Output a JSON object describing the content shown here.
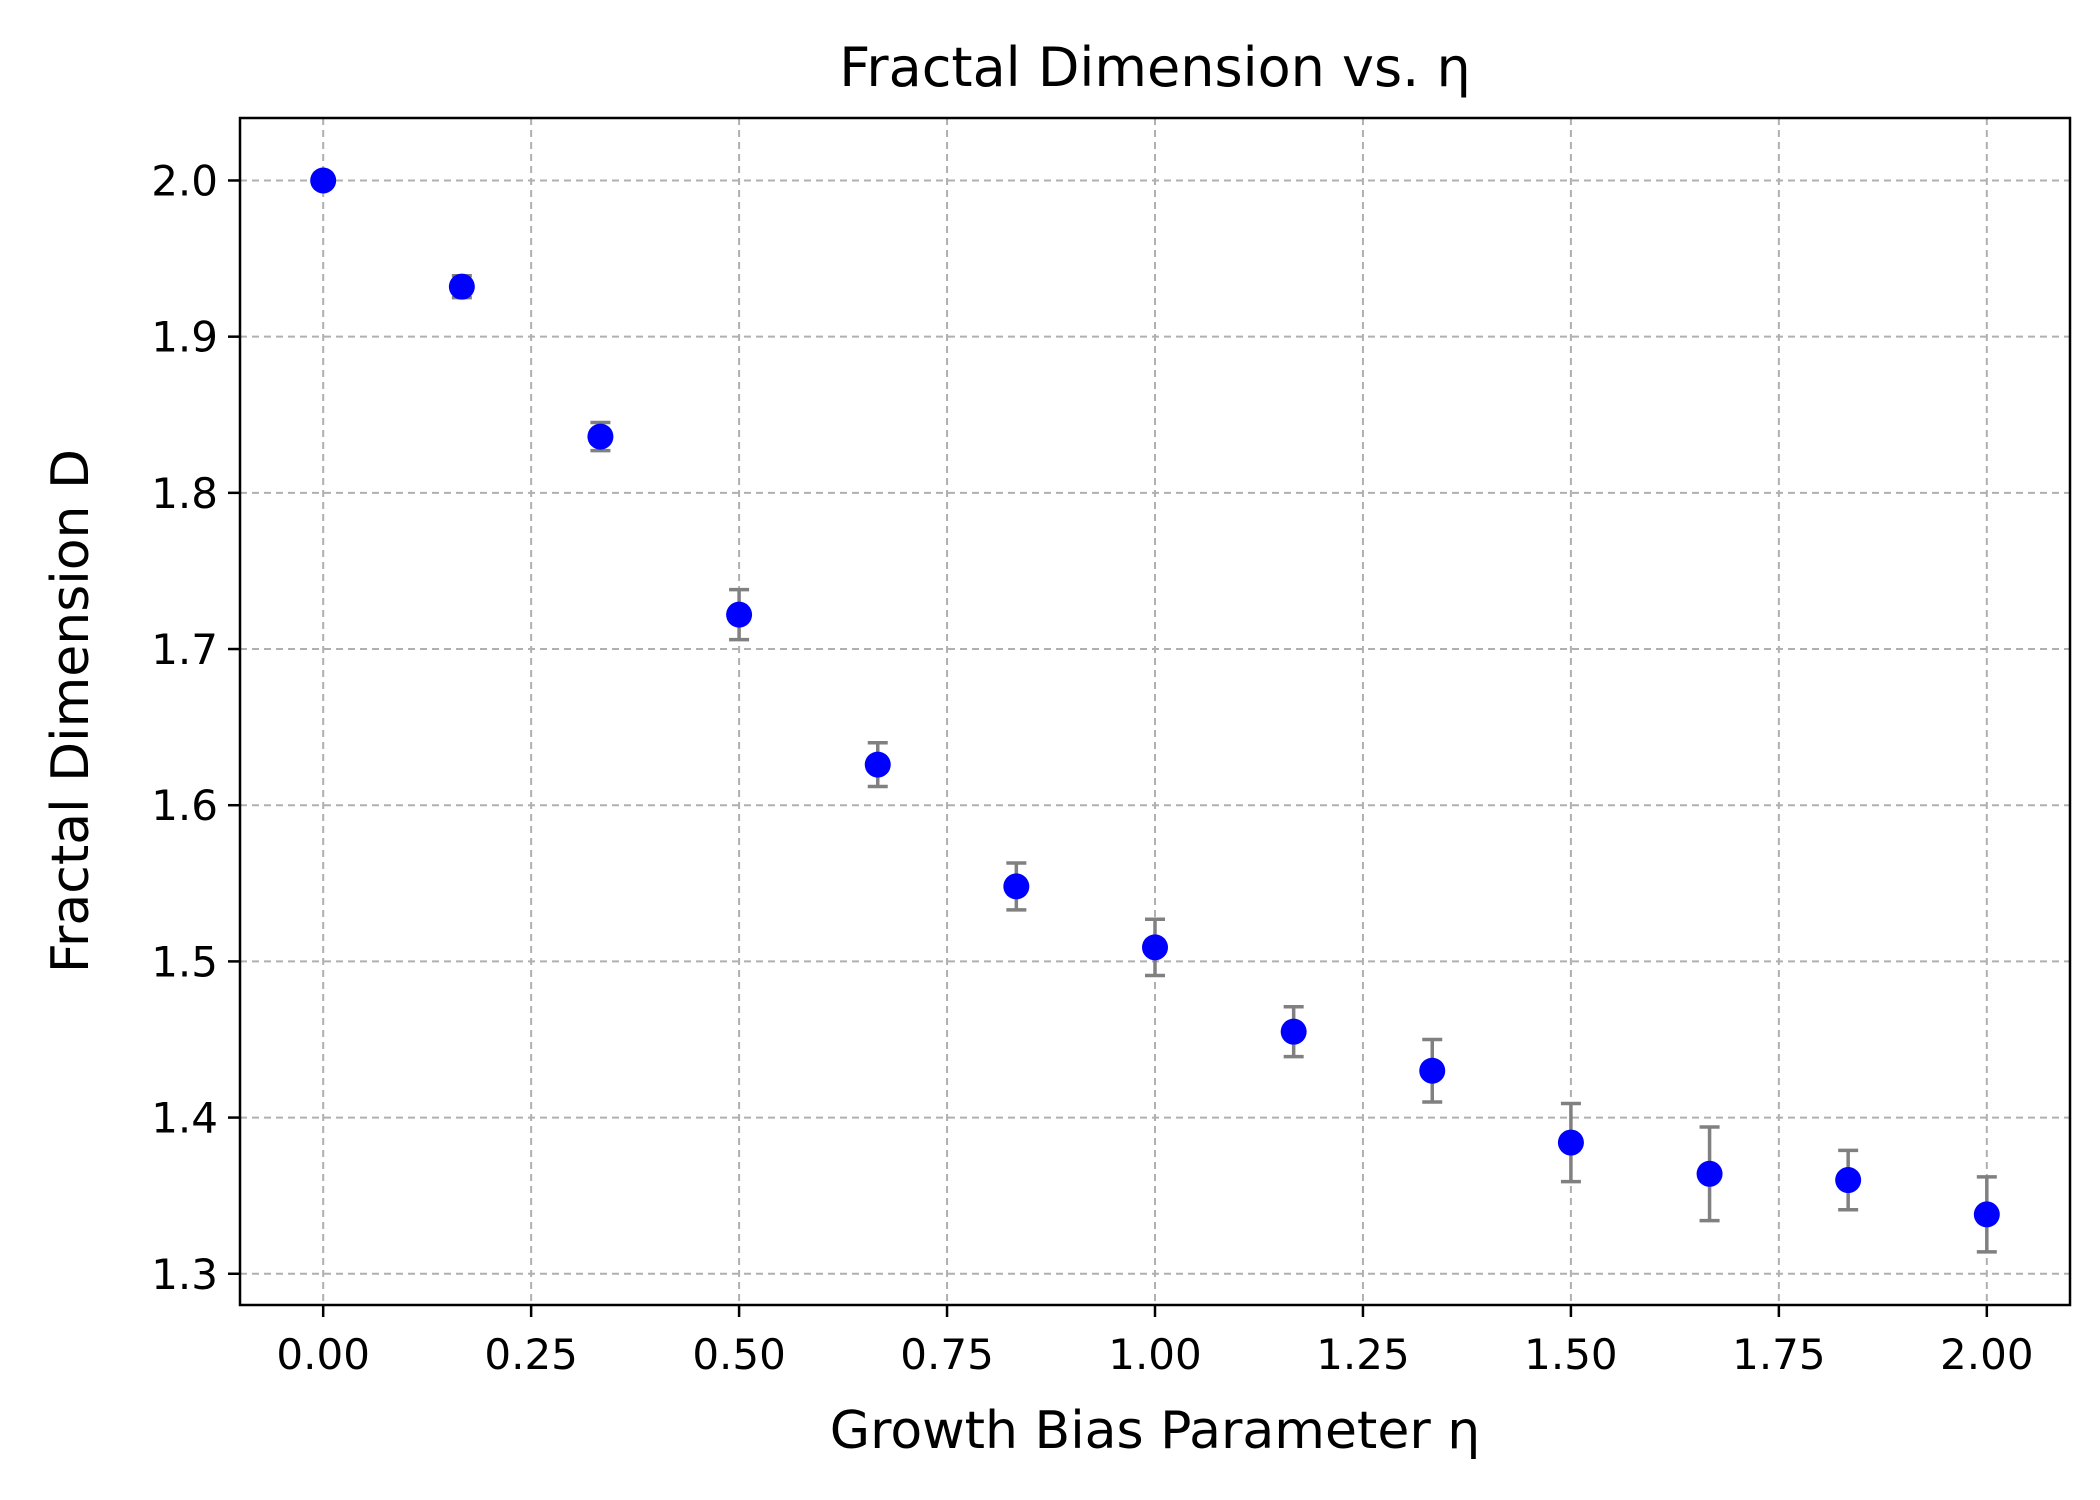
{
  "chart_data": {
    "type": "scatter",
    "title": "Fractal Dimension vs. η",
    "xlabel": "Growth Bias Parameter η",
    "ylabel": "Fractal Dimension D",
    "xlim": [
      -0.1,
      2.1
    ],
    "ylim": [
      1.28,
      2.04
    ],
    "xticks": [
      0.0,
      0.25,
      0.5,
      0.75,
      1.0,
      1.25,
      1.5,
      1.75,
      2.0
    ],
    "xtick_labels": [
      "0.00",
      "0.25",
      "0.50",
      "0.75",
      "1.00",
      "1.25",
      "1.50",
      "1.75",
      "2.00"
    ],
    "yticks": [
      1.3,
      1.4,
      1.5,
      1.6,
      1.7,
      1.8,
      1.9,
      2.0
    ],
    "ytick_labels": [
      "1.3",
      "1.4",
      "1.5",
      "1.6",
      "1.7",
      "1.8",
      "1.9",
      "2.0"
    ],
    "grid": true,
    "marker_color": "#0000ff",
    "errorbar_color": "#808080",
    "series": [
      {
        "x": [
          0.0,
          0.1667,
          0.3333,
          0.5,
          0.6667,
          0.8333,
          1.0,
          1.1667,
          1.3333,
          1.5,
          1.6667,
          1.8333,
          2.0
        ],
        "y": [
          2.0,
          1.932,
          1.836,
          1.722,
          1.626,
          1.548,
          1.509,
          1.455,
          1.43,
          1.384,
          1.364,
          1.36,
          1.338
        ],
        "yerr": [
          0.0,
          0.007,
          0.009,
          0.016,
          0.014,
          0.015,
          0.018,
          0.016,
          0.02,
          0.025,
          0.03,
          0.019,
          0.024
        ]
      }
    ]
  }
}
